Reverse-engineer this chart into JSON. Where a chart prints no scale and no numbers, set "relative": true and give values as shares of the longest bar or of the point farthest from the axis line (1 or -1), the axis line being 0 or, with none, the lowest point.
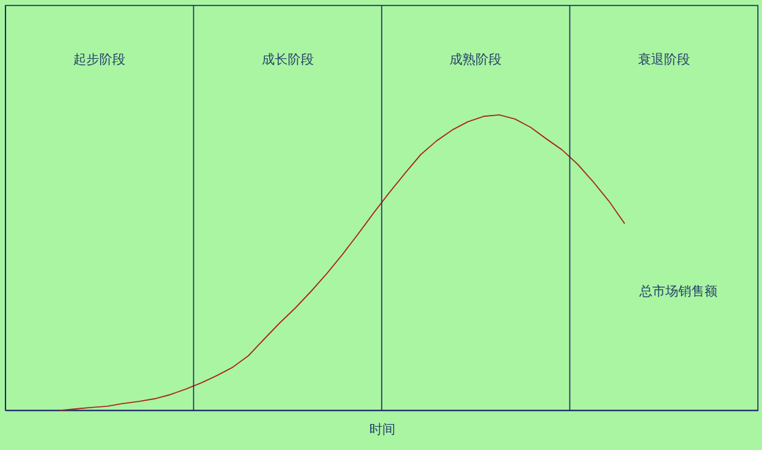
{
  "chart_data": {
    "type": "line",
    "relative": true,
    "xlabel": "时间",
    "categories": [
      null,
      null,
      null,
      null,
      null,
      null,
      null,
      null,
      null,
      null,
      null,
      null,
      null,
      null,
      null,
      null,
      null,
      null,
      null,
      null,
      null,
      null,
      null,
      null,
      null,
      null,
      null,
      null,
      null,
      null,
      null,
      null,
      null,
      null,
      null,
      null,
      null,
      null,
      null,
      null,
      null,
      null,
      null,
      null,
      null,
      null,
      null,
      null
    ],
    "series": [
      {
        "name": "总市场销售额",
        "color": "#a8201a",
        "values": [
          null,
          null,
          null,
          0,
          0.005,
          0.01,
          0.014,
          0.023,
          0.03,
          0.039,
          0.053,
          0.072,
          0.093,
          0.118,
          0.146,
          0.185,
          0.241,
          0.296,
          0.347,
          0.403,
          0.463,
          0.528,
          0.597,
          0.669,
          0.738,
          0.803,
          0.866,
          0.912,
          0.949,
          0.977,
          0.995,
          1,
          0.986,
          0.958,
          0.919,
          0.882,
          0.833,
          0.773,
          0.708,
          0.632,
          null,
          null,
          null,
          null,
          null,
          null,
          null,
          null
        ]
      }
    ],
    "annotations": [
      "起步阶段",
      "成长阶段",
      "成熟阶段",
      "衰退阶段"
    ],
    "line_style": "solid",
    "tick_labels": false
  }
}
